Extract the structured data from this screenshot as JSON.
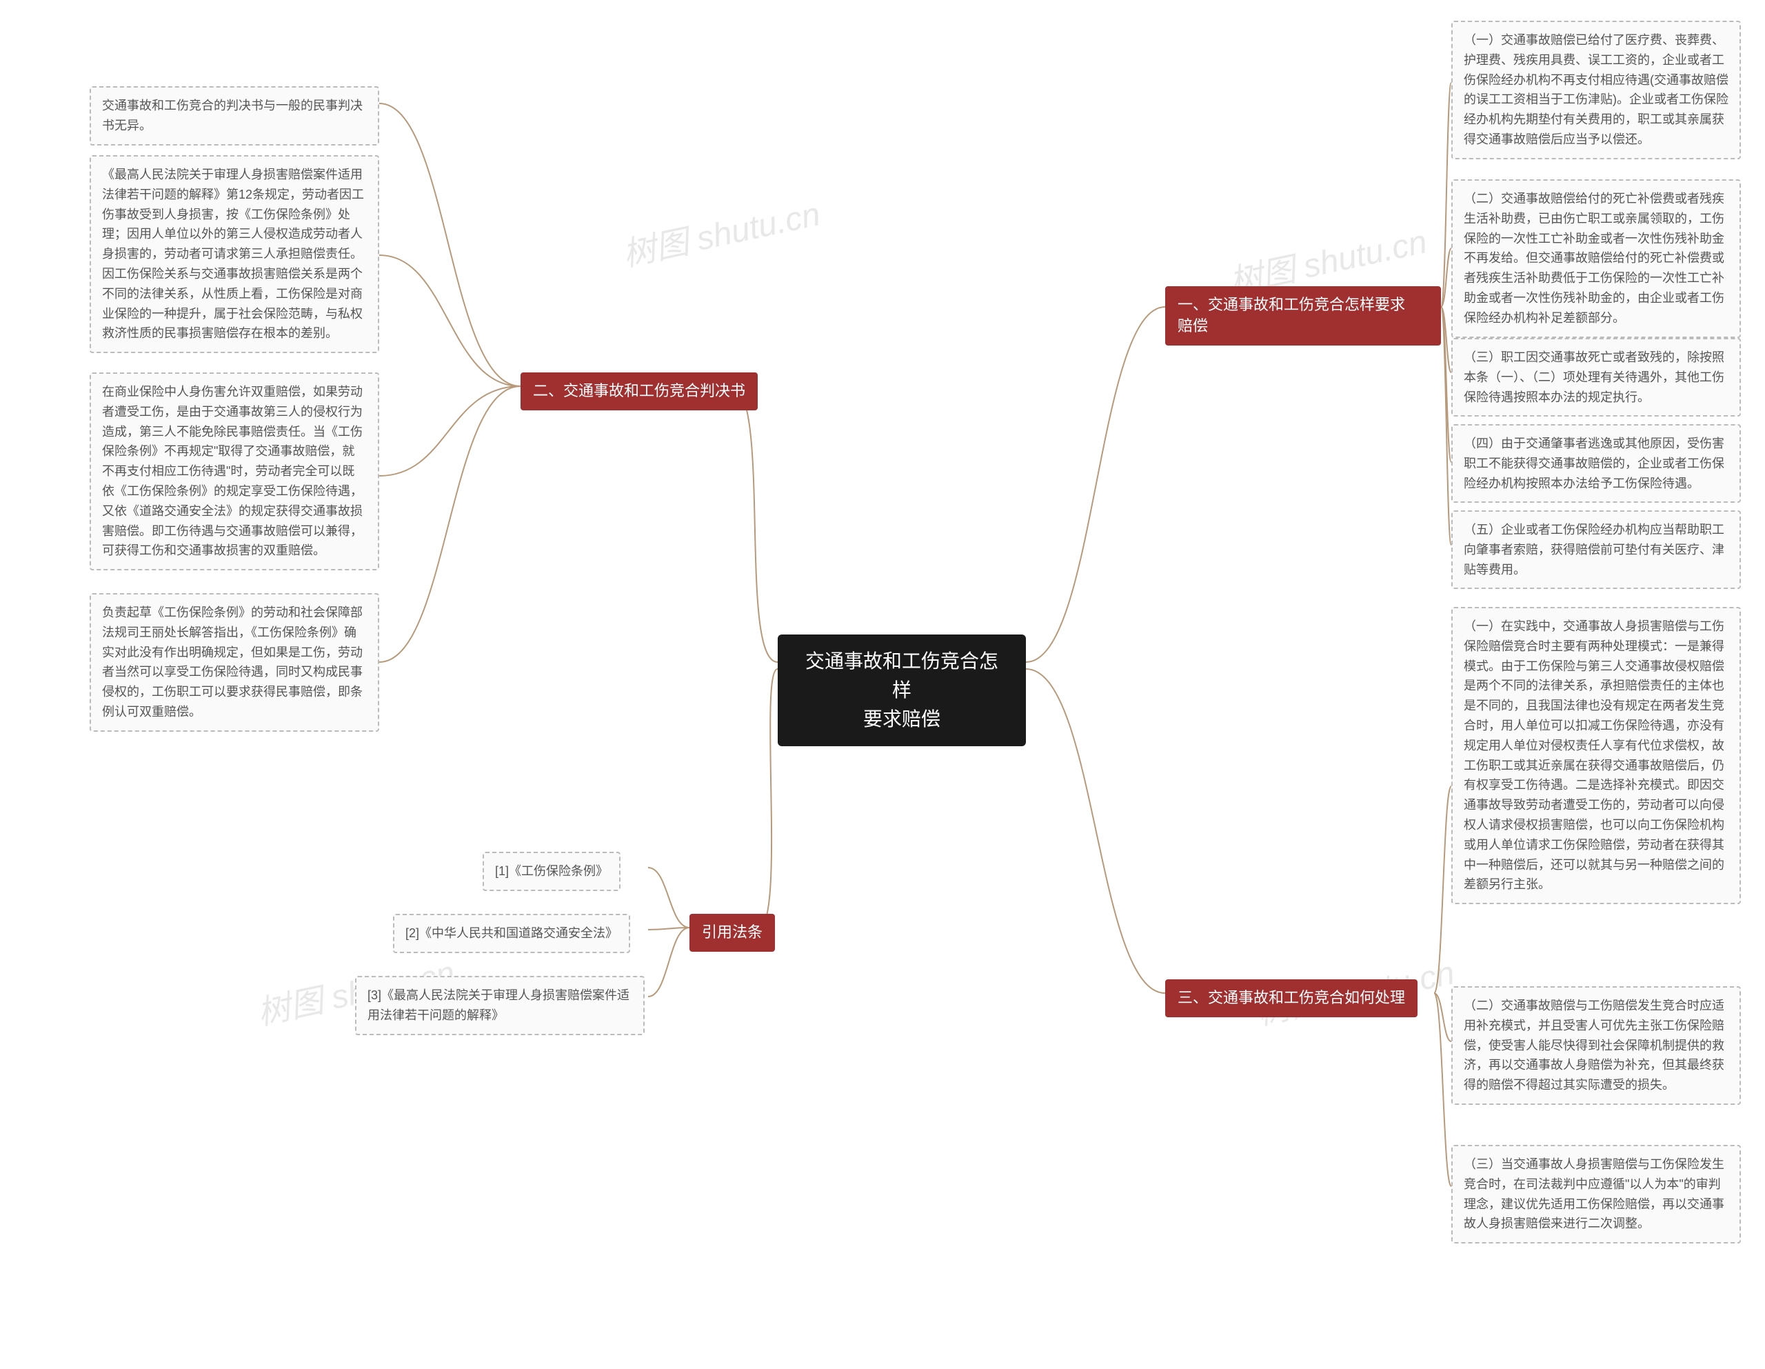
{
  "colors": {
    "center_bg": "#1a1a1a",
    "branch_bg": "#a03030",
    "leaf_border": "#bbbbbb",
    "leaf_bg": "#fafafa",
    "leaf_text": "#555555",
    "connector": "#b89a7a",
    "watermark": "#e8e8e8",
    "page_bg": "#ffffff"
  },
  "typography": {
    "center_fontsize": 28,
    "branch_fontsize": 22,
    "leaf_fontsize": 18,
    "font_family": "Microsoft YaHei"
  },
  "center": {
    "line1": "交通事故和工伤竞合怎样",
    "line2": "要求赔偿"
  },
  "watermark_text": "树图 shutu.cn",
  "branches": {
    "b1": {
      "label": "一、交通事故和工伤竞合怎样要求\n赔偿"
    },
    "b2": {
      "label": "二、交通事故和工伤竞合判决书"
    },
    "b3": {
      "label": "三、交通事故和工伤竞合如何处理"
    },
    "b4": {
      "label": "引用法条"
    }
  },
  "leaves": {
    "b1_1": "（一）交通事故赔偿已给付了医疗费、丧葬费、护理费、残疾用具费、误工工资的，企业或者工伤保险经办机构不再支付相应待遇(交通事故赔偿的误工工资相当于工伤津贴)。企业或者工伤保险经办机构先期垫付有关费用的，职工或其亲属获得交通事故赔偿后应当予以偿还。",
    "b1_2": "（二）交通事故赔偿给付的死亡补偿费或者残疾生活补助费，已由伤亡职工或亲属领取的，工伤保险的一次性工亡补助金或者一次性伤残补助金不再发给。但交通事故赔偿给付的死亡补偿费或者残疾生活补助费低于工伤保险的一次性工亡补助金或者一次性伤残补助金的，由企业或者工伤保险经办机构补足差额部分。",
    "b1_3": "（三）职工因交通事故死亡或者致残的，除按照本条（一）、（二）项处理有关待遇外，其他工伤保险待遇按照本办法的规定执行。",
    "b1_4": "（四）由于交通肇事者逃逸或其他原因，受伤害职工不能获得交通事故赔偿的，企业或者工伤保险经办机构按照本办法给予工伤保险待遇。",
    "b1_5": "（五）企业或者工伤保险经办机构应当帮助职工向肇事者索赔，获得赔偿前可垫付有关医疗、津贴等费用。",
    "b2_1": "交通事故和工伤竞合的判决书与一般的民事判决书无异。",
    "b2_2": "《最高人民法院关于审理人身损害赔偿案件适用法律若干问题的解释》第12条规定，劳动者因工伤事故受到人身损害，按《工伤保险条例》处理；因用人单位以外的第三人侵权造成劳动者人身损害的，劳动者可请求第三人承担赔偿责任。因工伤保险关系与交通事故损害赔偿关系是两个不同的法律关系，从性质上看，工伤保险是对商业保险的一种提升，属于社会保险范畴，与私权救济性质的民事损害赔偿存在根本的差别。",
    "b2_3": "在商业保险中人身伤害允许双重赔偿，如果劳动者遭受工伤，是由于交通事故第三人的侵权行为造成，第三人不能免除民事赔偿责任。当《工伤保险条例》不再规定\"取得了交通事故赔偿，就不再支付相应工伤待遇\"时，劳动者完全可以既依《工伤保险条例》的规定享受工伤保险待遇，又依《道路交通安全法》的规定获得交通事故损害赔偿。即工伤待遇与交通事故赔偿可以兼得，可获得工伤和交通事故损害的双重赔偿。",
    "b2_4": "负责起草《工伤保险条例》的劳动和社会保障部法规司王丽处长解答指出，《工伤保险条例》确实对此没有作出明确规定，但如果是工伤，劳动者当然可以享受工伤保险待遇，同时又构成民事侵权的，工伤职工可以要求获得民事赔偿，即条例认可双重赔偿。",
    "b3_1": "（一）在实践中，交通事故人身损害赔偿与工伤保险赔偿竞合时主要有两种处理模式：一是兼得模式。由于工伤保险与第三人交通事故侵权赔偿是两个不同的法律关系，承担赔偿责任的主体也是不同的，且我国法律也没有规定在两者发生竞合时，用人单位可以扣减工伤保险待遇，亦没有规定用人单位对侵权责任人享有代位求偿权，故工伤职工或其近亲属在获得交通事故赔偿后，仍有权享受工伤待遇。二是选择补充模式。即因交通事故导致劳动者遭受工伤的，劳动者可以向侵权人请求侵权损害赔偿，也可以向工伤保险机构或用人单位请求工伤保险赔偿，劳动者在获得其中一种赔偿后，还可以就其与另一种赔偿之间的差额另行主张。",
    "b3_2": "（二）交通事故赔偿与工伤赔偿发生竞合时应适用补充模式，并且受害人可优先主张工伤保险赔偿，使受害人能尽快得到社会保障机制提供的救济，再以交通事故人身赔偿为补充，但其最终获得的赔偿不得超过其实际遭受的损失。",
    "b3_3": "（三）当交通事故人身损害赔偿与工伤保险发生竞合时，在司法裁判中应遵循\"以人为本\"的审判理念，建议优先适用工伤保险赔偿，再以交通事故人身损害赔偿来进行二次调整。",
    "b4_1": "[1]《工伤保险条例》",
    "b4_2": "[2]《中华人民共和国道路交通安全法》",
    "b4_3": "[3]《最高人民法院关于审理人身损害赔偿案件适用法律若干问题的解释》"
  }
}
